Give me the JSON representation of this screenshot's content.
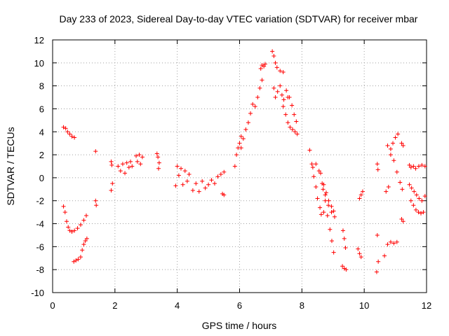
{
  "chart_data": {
    "type": "scatter",
    "title": "Day 233 of 2023, Sidereal Day-to-day VTEC variation (SDTVAR) for receiver mbar",
    "xlabel": "GPS time / hours",
    "ylabel": "SDTVAR / TECUs",
    "xlim": [
      0,
      12
    ],
    "ylim": [
      -10,
      12
    ],
    "x_ticks": [
      0,
      2,
      4,
      6,
      8,
      10,
      12
    ],
    "y_ticks": [
      -10,
      -8,
      -6,
      -4,
      -2,
      0,
      2,
      4,
      6,
      8,
      10,
      12
    ],
    "x_tick_labels": [
      "0",
      "2",
      "4",
      "6",
      "8",
      "10",
      "12"
    ],
    "y_tick_labels": [
      "-10",
      "-8",
      "-6",
      "-4",
      "-2",
      "0",
      "2",
      "4",
      "6",
      "8",
      "10",
      "12"
    ],
    "grid": true,
    "marker": "plus",
    "color": "#ff0000",
    "segments": [
      {
        "x": [
          0.35,
          0.42,
          0.48,
          0.55,
          0.62,
          0.7
        ],
        "y": [
          4.4,
          4.3,
          4.0,
          3.8,
          3.6,
          3.5
        ]
      },
      {
        "x": [
          0.35,
          0.4,
          0.45,
          0.5,
          0.55,
          0.62,
          0.7,
          0.8,
          0.9,
          1.0,
          1.08
        ],
        "y": [
          -2.5,
          -3.0,
          -3.8,
          -4.3,
          -4.6,
          -4.7,
          -4.6,
          -4.4,
          -4.1,
          -3.7,
          -3.3
        ]
      },
      {
        "x": [
          0.68,
          0.75,
          0.82,
          0.9,
          0.95,
          1.0,
          1.05,
          1.1
        ],
        "y": [
          -7.3,
          -7.2,
          -7.1,
          -6.9,
          -6.3,
          -5.8,
          -5.5,
          -5.3
        ]
      },
      {
        "x": [
          1.38
        ],
        "y": [
          2.3
        ]
      },
      {
        "x": [
          1.38,
          1.4
        ],
        "y": [
          -2.0,
          -2.4
        ]
      },
      {
        "x": [
          1.88,
          1.9,
          1.92,
          1.88
        ],
        "y": [
          1.4,
          1.1,
          -0.5,
          -1.1
        ]
      },
      {
        "x": [
          2.1,
          2.18,
          2.25,
          2.32,
          2.38,
          2.45,
          2.5,
          2.55
        ],
        "y": [
          1.0,
          0.6,
          1.2,
          0.4,
          1.3,
          0.9,
          1.4,
          1.0
        ]
      },
      {
        "x": [
          2.68,
          2.72,
          2.78,
          2.82,
          2.88
        ],
        "y": [
          1.9,
          1.4,
          2.0,
          1.2,
          1.8
        ]
      },
      {
        "x": [
          3.35,
          3.38,
          3.42,
          3.4
        ],
        "y": [
          2.1,
          1.8,
          1.3,
          0.8
        ]
      },
      {
        "x": [
          3.95,
          4.0,
          4.05,
          4.12,
          4.18,
          4.25,
          4.32,
          4.38
        ],
        "y": [
          -0.7,
          1.0,
          0.2,
          0.8,
          -0.6,
          0.6,
          -0.3,
          0.3
        ]
      },
      {
        "x": [
          4.5,
          4.6,
          4.7,
          4.8,
          4.9,
          5.0,
          5.1,
          5.2,
          5.3,
          5.4,
          5.5
        ],
        "y": [
          -1.1,
          -0.5,
          -1.2,
          -0.3,
          -0.9,
          -0.6,
          -0.2,
          -0.5,
          0.1,
          0.3,
          0.5
        ]
      },
      {
        "x": [
          5.45,
          5.5
        ],
        "y": [
          -1.4,
          -1.5
        ]
      },
      {
        "x": [
          5.85,
          5.9,
          5.95,
          6.0,
          6.05
        ],
        "y": [
          1.0,
          2.0,
          2.6,
          3.0,
          3.6
        ]
      },
      {
        "x": [
          6.05,
          6.12,
          6.2,
          6.28,
          6.35,
          6.42
        ],
        "y": [
          2.6,
          3.4,
          4.2,
          4.8,
          5.6,
          6.4
        ]
      },
      {
        "x": [
          6.5,
          6.58,
          6.65,
          6.72
        ],
        "y": [
          6.2,
          7.0,
          7.8,
          8.5
        ]
      },
      {
        "x": [
          6.68,
          6.72,
          6.78,
          6.82
        ],
        "y": [
          9.5,
          9.8,
          9.7,
          9.9
        ]
      },
      {
        "x": [
          7.05,
          7.1,
          7.15,
          7.2,
          7.3,
          7.4
        ],
        "y": [
          11.0,
          10.6,
          10.0,
          9.6,
          9.3,
          9.2
        ]
      },
      {
        "x": [
          7.1,
          7.15,
          7.22,
          7.3,
          7.36,
          7.42,
          7.5,
          7.55
        ],
        "y": [
          7.8,
          7.0,
          7.5,
          8.0,
          7.2,
          6.8,
          7.6,
          7.0
        ]
      },
      {
        "x": [
          7.4,
          7.48,
          7.55,
          7.62,
          7.7,
          7.78,
          7.85
        ],
        "y": [
          6.2,
          5.5,
          4.8,
          4.4,
          4.2,
          4.0,
          3.8
        ]
      },
      {
        "x": [
          7.6,
          7.68,
          7.75,
          7.82
        ],
        "y": [
          7.0,
          6.3,
          5.5,
          4.9
        ]
      },
      {
        "x": [
          8.25,
          8.32,
          8.38,
          8.45,
          8.5,
          8.58,
          8.62,
          8.7
        ],
        "y": [
          2.4,
          1.2,
          0.1,
          -0.8,
          -1.8,
          -2.6,
          -3.2,
          -3.0
        ]
      },
      {
        "x": [
          8.35,
          8.45,
          8.55,
          8.65,
          8.75,
          8.85,
          8.95,
          9.05
        ],
        "y": [
          0.9,
          1.2,
          0.6,
          -0.5,
          -1.5,
          -2.4,
          -3.0,
          -3.4
        ]
      },
      {
        "x": [
          8.6,
          8.68,
          8.75,
          8.82,
          8.9,
          8.96,
          9.02
        ],
        "y": [
          0.4,
          -1.0,
          -2.0,
          -3.3,
          -4.5,
          -5.5,
          -6.5
        ]
      },
      {
        "x": [
          8.7,
          8.78,
          8.86,
          8.95,
          9.02
        ],
        "y": [
          -0.6,
          -1.3,
          -2.0,
          -2.5,
          -2.9
        ]
      },
      {
        "x": [
          9.32,
          9.36,
          9.4
        ],
        "y": [
          -4.6,
          -5.3,
          -6.1
        ]
      },
      {
        "x": [
          9.3,
          9.36,
          9.42
        ],
        "y": [
          -7.7,
          -7.9,
          -8.0
        ]
      },
      {
        "x": [
          9.8,
          9.85,
          9.9
        ],
        "y": [
          -6.2,
          -6.6,
          -6.9
        ]
      },
      {
        "x": [
          9.85,
          9.9,
          9.95
        ],
        "y": [
          -1.8,
          -1.5,
          -1.2
        ]
      },
      {
        "x": [
          10.42,
          10.44
        ],
        "y": [
          1.2,
          0.7
        ]
      },
      {
        "x": [
          10.42,
          10.45,
          10.4
        ],
        "y": [
          -5.0,
          -7.3,
          -8.2
        ]
      },
      {
        "x": [
          10.65,
          10.75,
          10.85,
          10.95,
          11.05
        ],
        "y": [
          -6.8,
          -5.8,
          -5.6,
          -5.7,
          -5.6
        ]
      },
      {
        "x": [
          10.7,
          10.78,
          10.85,
          10.92,
          11.0,
          11.08
        ],
        "y": [
          -1.2,
          -0.8,
          2.5,
          3.0,
          3.5,
          3.8
        ]
      },
      {
        "x": [
          10.75,
          10.85,
          10.95,
          11.05,
          11.15,
          11.22
        ],
        "y": [
          2.8,
          2.0,
          1.5,
          0.5,
          -0.4,
          -1.0
        ]
      },
      {
        "x": [
          11.2,
          11.25
        ],
        "y": [
          3.0,
          2.8
        ]
      },
      {
        "x": [
          11.2,
          11.25
        ],
        "y": [
          -3.6,
          -3.8
        ]
      },
      {
        "x": [
          11.45,
          11.5,
          11.58,
          11.65,
          11.75,
          11.85,
          11.95
        ],
        "y": [
          1.1,
          0.9,
          1.0,
          0.8,
          1.0,
          1.1,
          1.0
        ]
      },
      {
        "x": [
          11.45,
          11.52,
          11.6,
          11.68,
          11.76,
          11.85,
          11.95
        ],
        "y": [
          -0.6,
          -0.9,
          -1.2,
          -1.5,
          -1.8,
          -2.0,
          -1.6
        ]
      },
      {
        "x": [
          11.5,
          11.58,
          11.66,
          11.74,
          11.82,
          11.9
        ],
        "y": [
          -2.0,
          -2.4,
          -2.8,
          -3.0,
          -3.1,
          -3.0
        ]
      }
    ]
  }
}
